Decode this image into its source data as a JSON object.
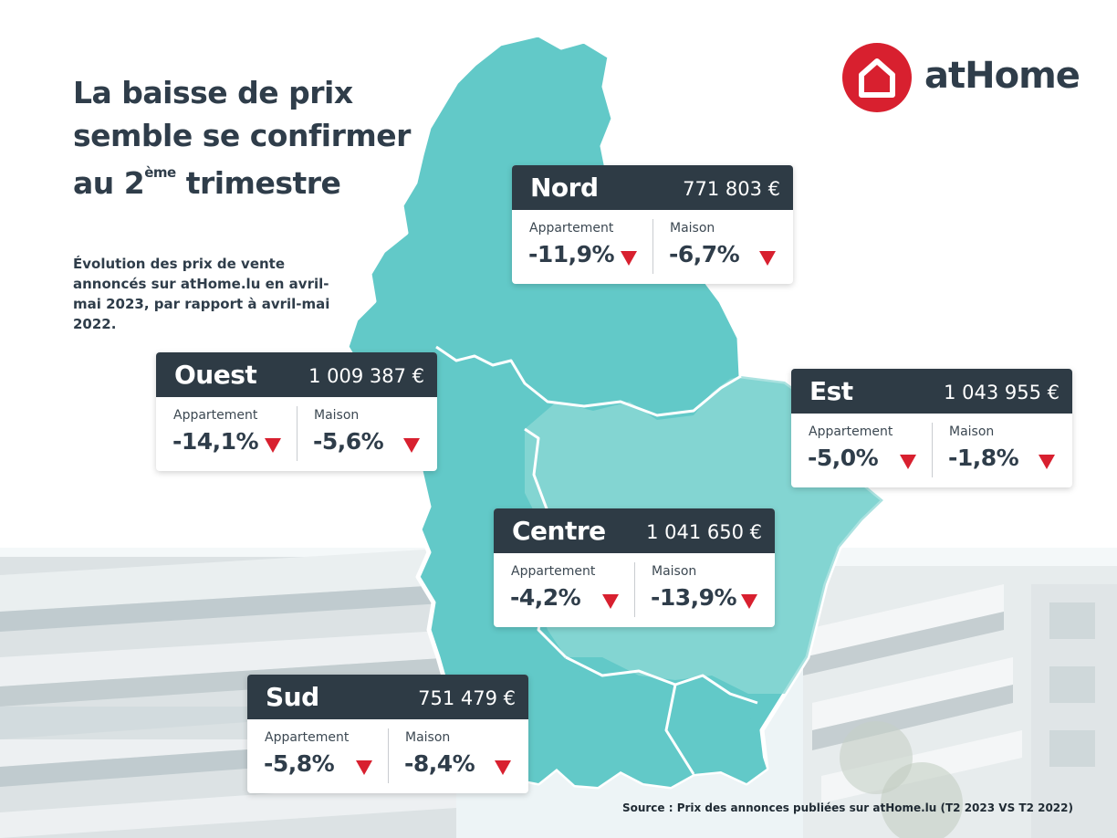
{
  "title": {
    "line1": "La baisse de prix",
    "line2": "semble se confirmer",
    "line3_prefix": "au 2",
    "line3_sup": "ème",
    "line3_suffix": " trimestre"
  },
  "subtitle": "Évolution des prix de vente annoncés sur atHome.lu en avril-mai 2023, par rapport à avril-mai 2022.",
  "logo": {
    "text": "atHome",
    "color": "#d8202f"
  },
  "colors": {
    "map_fill": "#62c9c8",
    "map_fill_light": "#8fd8d5",
    "card_header": "#2e3b45",
    "down_arrow": "#d8202f"
  },
  "regions": [
    {
      "key": "nord",
      "name": "Nord",
      "price": "771 803 €",
      "appartement_label": "Appartement",
      "appartement_change": "-11,9%",
      "maison_label": "Maison",
      "maison_change": "-6,7%"
    },
    {
      "key": "ouest",
      "name": "Ouest",
      "price": "1 009 387 €",
      "appartement_label": "Appartement",
      "appartement_change": "-14,1%",
      "maison_label": "Maison",
      "maison_change": "-5,6%"
    },
    {
      "key": "est",
      "name": "Est",
      "price": "1 043 955 €",
      "appartement_label": "Appartement",
      "appartement_change": "-5,0%",
      "maison_label": "Maison",
      "maison_change": "-1,8%"
    },
    {
      "key": "centre",
      "name": "Centre",
      "price": "1 041 650 €",
      "appartement_label": "Appartement",
      "appartement_change": "-4,2%",
      "maison_label": "Maison",
      "maison_change": "-13,9%"
    },
    {
      "key": "sud",
      "name": "Sud",
      "price": "751 479 €",
      "appartement_label": "Appartement",
      "appartement_change": "-5,8%",
      "maison_label": "Maison",
      "maison_change": "-8,4%"
    }
  ],
  "source": "Source : Prix des annonces publiées sur atHome.lu (T2 2023 VS T2 2022)"
}
